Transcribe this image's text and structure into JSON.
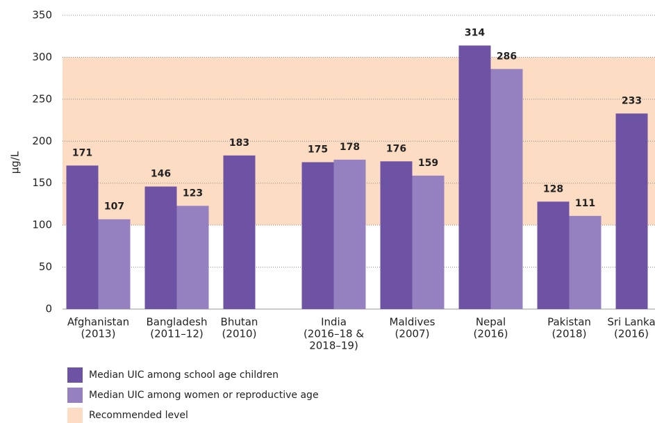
{
  "chart_data": {
    "type": "bar",
    "y_label": "µg/L",
    "categories": [
      [
        "Afghanistan",
        "(2013)"
      ],
      [
        "Bangladesh",
        "(2011–12)"
      ],
      [
        "Bhutan",
        "(2010)"
      ],
      [
        "India",
        "(2016–18 &",
        "2018–19)"
      ],
      [
        "Maldives",
        "(2007)"
      ],
      [
        "Nepal",
        "(2016)"
      ],
      [
        "Pakistan",
        "(2018)"
      ],
      [
        "Sri Lanka",
        "(2016)"
      ]
    ],
    "series": [
      {
        "name": "Median UIC among school age children",
        "color": "#6e52a3",
        "values": [
          171,
          146,
          183,
          175,
          176,
          314,
          128,
          233
        ]
      },
      {
        "name": "Median UIC among women or reproductive age",
        "color": "#9581bf",
        "values": [
          107,
          123,
          null,
          178,
          159,
          286,
          111,
          null
        ]
      }
    ],
    "bands": [
      {
        "name": "Recommended level",
        "color": "#fddcc4",
        "range": [
          100,
          300
        ]
      }
    ],
    "ylim": [
      0,
      350
    ],
    "yticks": [
      0,
      50,
      100,
      150,
      200,
      250,
      300,
      350
    ],
    "grid": true
  }
}
